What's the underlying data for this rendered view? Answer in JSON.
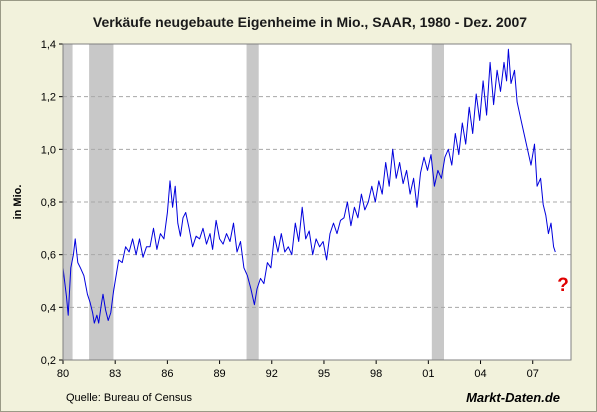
{
  "chart_data": {
    "type": "line",
    "title": "Verkäufe neugebaute Eigenheime in Mio., SAAR, 1980 - Dez. 2007",
    "ylabel": "in Mio.",
    "xlabel": "",
    "xlim": [
      1980,
      2009.2
    ],
    "ylim": [
      0.2,
      1.4
    ],
    "grid": "horizontal dashed",
    "y_ticks": [
      {
        "value": 0.2,
        "label": "0,2"
      },
      {
        "value": 0.4,
        "label": "0,4"
      },
      {
        "value": 0.6,
        "label": "0,6"
      },
      {
        "value": 0.8,
        "label": "0,8"
      },
      {
        "value": 1.0,
        "label": "1,0"
      },
      {
        "value": 1.2,
        "label": "1,2"
      },
      {
        "value": 1.4,
        "label": "1,4"
      }
    ],
    "x_ticks": [
      {
        "value": 1980,
        "label": "80"
      },
      {
        "value": 1983,
        "label": "83"
      },
      {
        "value": 1986,
        "label": "86"
      },
      {
        "value": 1989,
        "label": "89"
      },
      {
        "value": 1992,
        "label": "92"
      },
      {
        "value": 1995,
        "label": "95"
      },
      {
        "value": 1998,
        "label": "98"
      },
      {
        "value": 2001,
        "label": "01"
      },
      {
        "value": 2004,
        "label": "04"
      },
      {
        "value": 2007,
        "label": "07"
      }
    ],
    "recessions": [
      {
        "start": 1980.0,
        "end": 1980.55
      },
      {
        "start": 1981.5,
        "end": 1982.9
      },
      {
        "start": 1990.55,
        "end": 1991.25
      },
      {
        "start": 2001.2,
        "end": 2001.9
      }
    ],
    "series": [
      {
        "color": "#0000dd",
        "points": [
          [
            1980.0,
            0.55
          ],
          [
            1980.2,
            0.44
          ],
          [
            1980.3,
            0.37
          ],
          [
            1980.45,
            0.55
          ],
          [
            1980.6,
            0.6
          ],
          [
            1980.7,
            0.66
          ],
          [
            1980.85,
            0.57
          ],
          [
            1981.0,
            0.55
          ],
          [
            1981.2,
            0.52
          ],
          [
            1981.4,
            0.45
          ],
          [
            1981.55,
            0.42
          ],
          [
            1981.7,
            0.38
          ],
          [
            1981.8,
            0.34
          ],
          [
            1981.95,
            0.37
          ],
          [
            1982.05,
            0.34
          ],
          [
            1982.2,
            0.41
          ],
          [
            1982.3,
            0.45
          ],
          [
            1982.45,
            0.39
          ],
          [
            1982.6,
            0.35
          ],
          [
            1982.75,
            0.38
          ],
          [
            1982.9,
            0.46
          ],
          [
            1983.05,
            0.52
          ],
          [
            1983.2,
            0.58
          ],
          [
            1983.4,
            0.57
          ],
          [
            1983.6,
            0.63
          ],
          [
            1983.8,
            0.61
          ],
          [
            1984.0,
            0.66
          ],
          [
            1984.2,
            0.6
          ],
          [
            1984.4,
            0.66
          ],
          [
            1984.6,
            0.59
          ],
          [
            1984.8,
            0.63
          ],
          [
            1985.0,
            0.63
          ],
          [
            1985.2,
            0.7
          ],
          [
            1985.4,
            0.62
          ],
          [
            1985.6,
            0.68
          ],
          [
            1985.8,
            0.66
          ],
          [
            1986.0,
            0.76
          ],
          [
            1986.15,
            0.88
          ],
          [
            1986.3,
            0.78
          ],
          [
            1986.45,
            0.86
          ],
          [
            1986.6,
            0.72
          ],
          [
            1986.75,
            0.67
          ],
          [
            1986.9,
            0.74
          ],
          [
            1987.05,
            0.76
          ],
          [
            1987.25,
            0.7
          ],
          [
            1987.45,
            0.63
          ],
          [
            1987.65,
            0.67
          ],
          [
            1987.85,
            0.66
          ],
          [
            1988.05,
            0.7
          ],
          [
            1988.25,
            0.64
          ],
          [
            1988.45,
            0.68
          ],
          [
            1988.6,
            0.62
          ],
          [
            1988.8,
            0.73
          ],
          [
            1989.0,
            0.66
          ],
          [
            1989.2,
            0.64
          ],
          [
            1989.4,
            0.68
          ],
          [
            1989.6,
            0.65
          ],
          [
            1989.8,
            0.72
          ],
          [
            1990.0,
            0.61
          ],
          [
            1990.2,
            0.65
          ],
          [
            1990.4,
            0.55
          ],
          [
            1990.6,
            0.52
          ],
          [
            1990.8,
            0.47
          ],
          [
            1991.0,
            0.41
          ],
          [
            1991.15,
            0.47
          ],
          [
            1991.35,
            0.51
          ],
          [
            1991.55,
            0.49
          ],
          [
            1991.75,
            0.57
          ],
          [
            1991.95,
            0.55
          ],
          [
            1992.15,
            0.67
          ],
          [
            1992.35,
            0.61
          ],
          [
            1992.55,
            0.68
          ],
          [
            1992.75,
            0.61
          ],
          [
            1992.95,
            0.63
          ],
          [
            1993.15,
            0.6
          ],
          [
            1993.35,
            0.72
          ],
          [
            1993.55,
            0.65
          ],
          [
            1993.75,
            0.78
          ],
          [
            1993.95,
            0.66
          ],
          [
            1994.15,
            0.69
          ],
          [
            1994.35,
            0.6
          ],
          [
            1994.55,
            0.66
          ],
          [
            1994.75,
            0.63
          ],
          [
            1994.95,
            0.65
          ],
          [
            1995.15,
            0.58
          ],
          [
            1995.35,
            0.68
          ],
          [
            1995.55,
            0.72
          ],
          [
            1995.75,
            0.68
          ],
          [
            1995.95,
            0.73
          ],
          [
            1996.15,
            0.74
          ],
          [
            1996.35,
            0.8
          ],
          [
            1996.55,
            0.71
          ],
          [
            1996.75,
            0.78
          ],
          [
            1996.95,
            0.74
          ],
          [
            1997.15,
            0.83
          ],
          [
            1997.35,
            0.77
          ],
          [
            1997.55,
            0.8
          ],
          [
            1997.75,
            0.86
          ],
          [
            1997.95,
            0.8
          ],
          [
            1998.15,
            0.88
          ],
          [
            1998.35,
            0.83
          ],
          [
            1998.55,
            0.95
          ],
          [
            1998.75,
            0.86
          ],
          [
            1998.95,
            1.0
          ],
          [
            1999.15,
            0.89
          ],
          [
            1999.35,
            0.95
          ],
          [
            1999.55,
            0.87
          ],
          [
            1999.75,
            0.92
          ],
          [
            1999.95,
            0.83
          ],
          [
            2000.15,
            0.89
          ],
          [
            2000.35,
            0.78
          ],
          [
            2000.55,
            0.91
          ],
          [
            2000.75,
            0.97
          ],
          [
            2000.95,
            0.92
          ],
          [
            2001.15,
            0.98
          ],
          [
            2001.35,
            0.86
          ],
          [
            2001.55,
            0.92
          ],
          [
            2001.75,
            0.89
          ],
          [
            2001.95,
            0.97
          ],
          [
            2002.15,
            1.0
          ],
          [
            2002.35,
            0.94
          ],
          [
            2002.55,
            1.06
          ],
          [
            2002.75,
            0.98
          ],
          [
            2002.95,
            1.1
          ],
          [
            2003.15,
            1.02
          ],
          [
            2003.35,
            1.16
          ],
          [
            2003.55,
            1.06
          ],
          [
            2003.75,
            1.21
          ],
          [
            2003.95,
            1.11
          ],
          [
            2004.15,
            1.26
          ],
          [
            2004.35,
            1.13
          ],
          [
            2004.55,
            1.33
          ],
          [
            2004.75,
            1.17
          ],
          [
            2004.95,
            1.3
          ],
          [
            2005.15,
            1.22
          ],
          [
            2005.35,
            1.33
          ],
          [
            2005.5,
            1.26
          ],
          [
            2005.6,
            1.38
          ],
          [
            2005.75,
            1.25
          ],
          [
            2005.95,
            1.3
          ],
          [
            2006.1,
            1.18
          ],
          [
            2006.3,
            1.12
          ],
          [
            2006.5,
            1.06
          ],
          [
            2006.7,
            1.0
          ],
          [
            2006.9,
            0.94
          ],
          [
            2007.1,
            1.02
          ],
          [
            2007.25,
            0.86
          ],
          [
            2007.45,
            0.89
          ],
          [
            2007.6,
            0.79
          ],
          [
            2007.75,
            0.75
          ],
          [
            2007.9,
            0.68
          ],
          [
            2008.05,
            0.72
          ],
          [
            2008.2,
            0.63
          ],
          [
            2008.3,
            0.61
          ]
        ]
      }
    ]
  },
  "annotation": "?",
  "source": "Quelle: Bureau of Census",
  "brand": "Markt-Daten.de",
  "colors": {
    "background": "#f2f2dc",
    "plot_background": "#ffffff",
    "line": "#0000dd",
    "recession": "#c8c8c8",
    "annotation": "#e00000"
  }
}
